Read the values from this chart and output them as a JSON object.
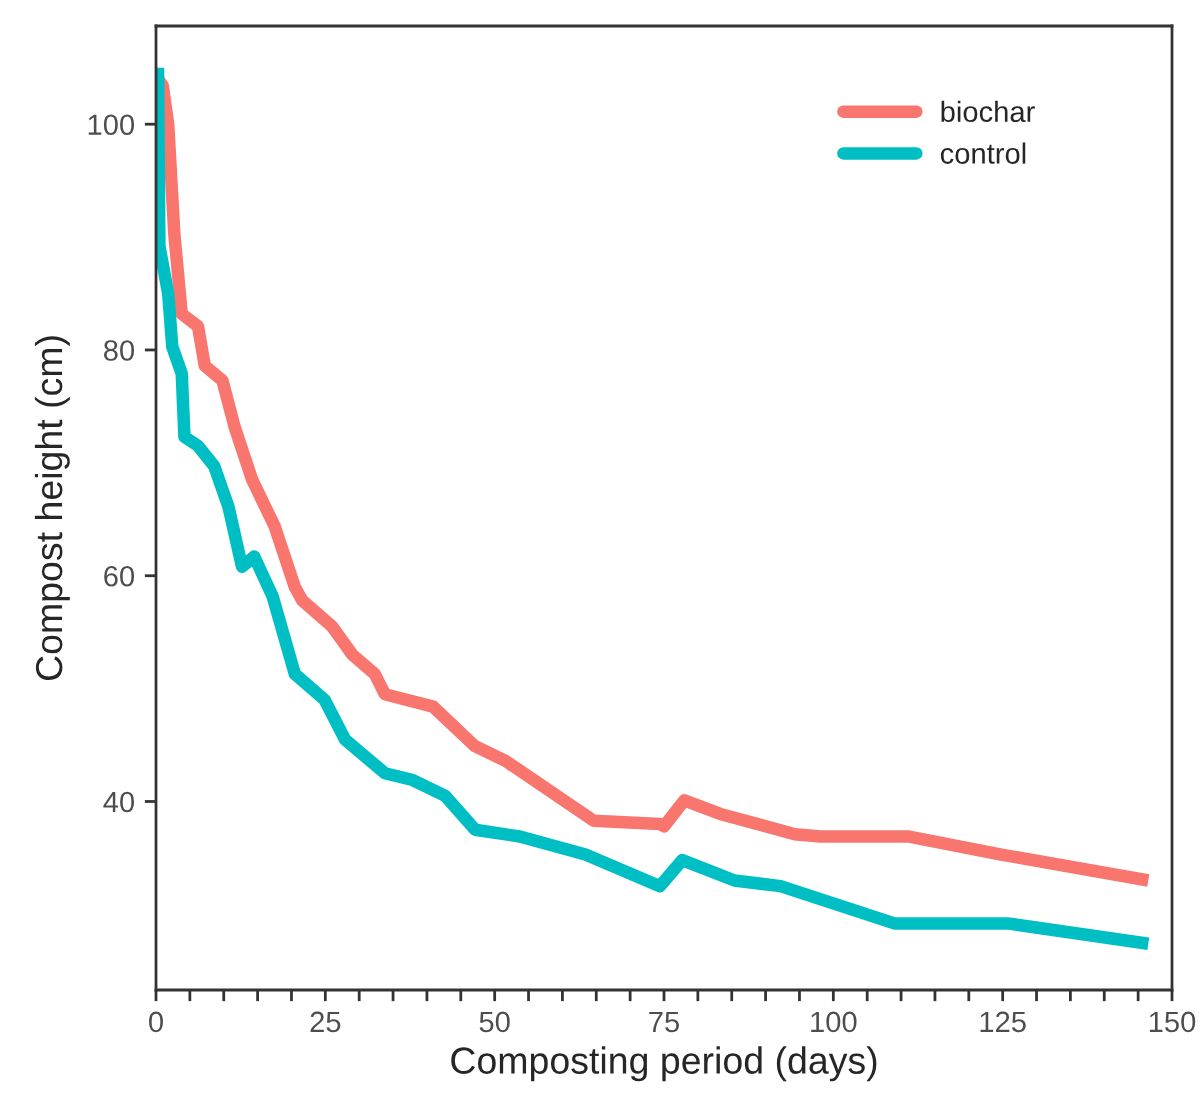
{
  "chart_data": {
    "type": "line",
    "xlabel": "Composting period (days)",
    "ylabel": "Compost height (cm)",
    "xlim": [
      0,
      150
    ],
    "ylim": [
      23.3,
      108.7
    ],
    "xticks": [
      0,
      {
        "value": 5,
        "label": null
      },
      {
        "value": 10,
        "label": null
      },
      {
        "value": 15,
        "label": null
      },
      {
        "value": 20,
        "label": null
      },
      25,
      {
        "value": 30,
        "label": null
      },
      {
        "value": 35,
        "label": null
      },
      {
        "value": 40,
        "label": null
      },
      {
        "value": 45,
        "label": null
      },
      50,
      {
        "value": 55,
        "label": null
      },
      {
        "value": 60,
        "label": null
      },
      {
        "value": 65,
        "label": null
      },
      {
        "value": 70,
        "label": null
      },
      75,
      {
        "value": 80,
        "label": null
      },
      {
        "value": 85,
        "label": null
      },
      {
        "value": 90,
        "label": null
      },
      {
        "value": 95,
        "label": null
      },
      100,
      {
        "value": 105,
        "label": null
      },
      {
        "value": 110,
        "label": null
      },
      {
        "value": 115,
        "label": null
      },
      {
        "value": 120,
        "label": null
      },
      125,
      {
        "value": 130,
        "label": null
      },
      {
        "value": 135,
        "label": null
      },
      {
        "value": 140,
        "label": null
      },
      {
        "value": 145,
        "label": null
      },
      150
    ],
    "yticks": [
      40,
      60,
      80,
      100
    ],
    "grid": false,
    "legend": "top right",
    "marker": "none",
    "line_style": "solid",
    "series": [
      {
        "name": "biochar",
        "color": "#f8766d",
        "x": [
          0.3,
          1,
          1.8,
          2.7,
          3.8,
          6.2,
          7.2,
          9.8,
          11.6,
          14.2,
          17.5,
          20.5,
          21.6,
          26,
          29,
          32.3,
          33.8,
          40.9,
          47.1,
          51.6,
          64.6,
          74.4,
          75,
          78,
          83.3,
          94.3,
          98.1,
          111,
          124.8,
          146.5
        ],
        "values": [
          104,
          103.4,
          100,
          90.3,
          83.2,
          82.1,
          78.6,
          77.3,
          73.2,
          68.5,
          64.4,
          59,
          57.8,
          55.5,
          53.0,
          51.3,
          49.5,
          48.4,
          44.9,
          43.6,
          38.3,
          38.0,
          37.8,
          40.1,
          38.9,
          37.1,
          36.9,
          36.9,
          35.3,
          33.0
        ]
      },
      {
        "name": "control",
        "color": "#00bfc4",
        "x": [
          0.3,
          0.5,
          1.8,
          2.4,
          3.8,
          4.2,
          6.2,
          8.6,
          10.7,
          12.7,
          14.5,
          17.2,
          20.5,
          24.9,
          27.9,
          33.8,
          37.9,
          42.7,
          47.1,
          53.7,
          63.4,
          74.4,
          77.7,
          85.4,
          92.2,
          109,
          125.7,
          146.5
        ],
        "values": [
          105,
          89.2,
          85,
          80.3,
          77.9,
          72.3,
          71.5,
          69.7,
          66.1,
          60.8,
          61.7,
          58.2,
          51.3,
          49.0,
          45.5,
          42.5,
          41.9,
          40.5,
          37.5,
          36.9,
          35.3,
          32.5,
          34.8,
          33.0,
          32.5,
          29.2,
          29.2,
          27.4
        ]
      }
    ]
  }
}
